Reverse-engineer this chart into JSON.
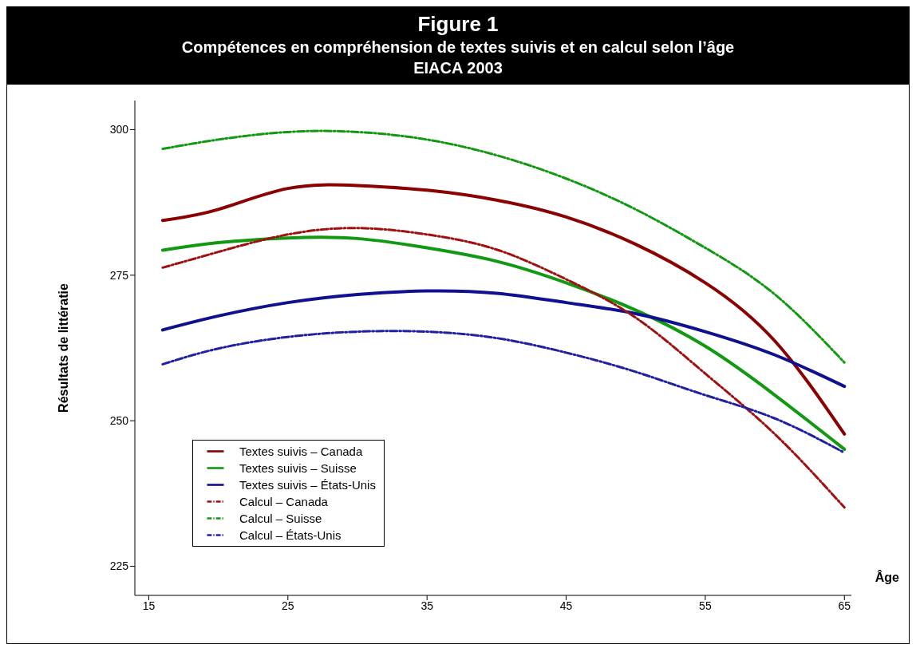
{
  "chart_data": {
    "type": "line",
    "title": "Figure 1",
    "subtitle": "Compétences en compréhension de textes suivis et en calcul selon l’âge\nEIACA 2003",
    "xlabel": "Âge",
    "ylabel": "Résultats de littératie",
    "x": [
      16,
      20,
      25,
      30,
      35,
      40,
      45,
      50,
      55,
      60,
      65
    ],
    "xlim": [
      14,
      65.5
    ],
    "xticks": [
      15,
      25,
      35,
      45,
      55,
      65
    ],
    "ylim": [
      220,
      305
    ],
    "yticks": [
      225,
      250,
      275,
      300
    ],
    "grid": false,
    "legend": "bottom left",
    "marker": "none",
    "series": [
      {
        "name": "Textes suivis – Canada",
        "color": "#8b0000",
        "line_style": "solid",
        "values": [
          284.4,
          286.3,
          289.9,
          290.4,
          289.6,
          287.9,
          285.0,
          280.3,
          273.7,
          263.7,
          247.7
        ]
      },
      {
        "name": "Textes suivis – Suisse",
        "color": "#119911",
        "line_style": "solid",
        "values": [
          279.3,
          280.6,
          281.4,
          281.3,
          279.7,
          277.4,
          273.7,
          269.0,
          262.8,
          254.4,
          245.1
        ]
      },
      {
        "name": "Textes suivis – États-Unis",
        "color": "#101090",
        "line_style": "solid",
        "values": [
          265.6,
          268.0,
          270.3,
          271.7,
          272.3,
          271.9,
          270.3,
          268.4,
          265.3,
          261.3,
          255.9
        ]
      },
      {
        "name": "Calcul – Canada",
        "color": "#a01010",
        "line_style": "dashdot",
        "values": [
          276.3,
          279.0,
          282.0,
          283.1,
          282.0,
          279.4,
          274.3,
          267.7,
          258.1,
          247.7,
          235.1
        ]
      },
      {
        "name": "Calcul – Suisse",
        "color": "#119911",
        "line_style": "dashdot",
        "values": [
          296.7,
          298.3,
          299.6,
          299.6,
          298.3,
          295.6,
          291.6,
          286.3,
          279.7,
          271.7,
          260.0
        ]
      },
      {
        "name": "Calcul – États-Unis",
        "color": "#2020a0",
        "line_style": "dashdot",
        "values": [
          259.7,
          262.4,
          264.4,
          265.3,
          265.3,
          264.2,
          261.7,
          258.4,
          254.4,
          250.4,
          244.5
        ]
      }
    ]
  }
}
